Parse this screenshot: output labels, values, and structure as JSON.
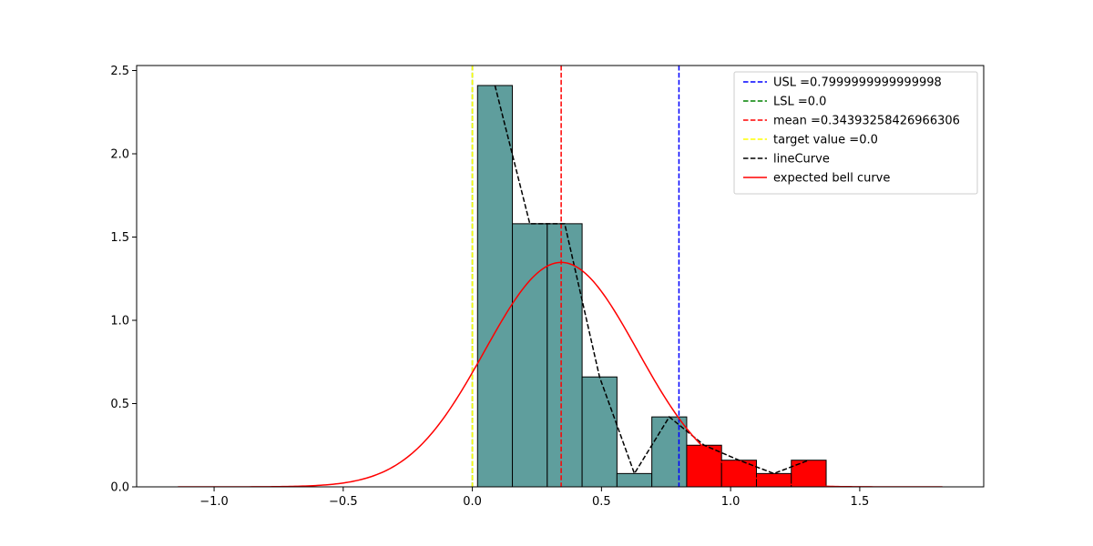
{
  "chart_data": {
    "type": "bar",
    "title": "",
    "xlabel": "",
    "ylabel": "",
    "xlim": [
      -1.3,
      1.98
    ],
    "ylim": [
      0,
      2.53
    ],
    "xticks": [
      -1.0,
      -0.5,
      0.0,
      0.5,
      1.0,
      1.5
    ],
    "xtick_labels": [
      "−1.0",
      "−0.5",
      "0.0",
      "0.5",
      "1.0",
      "1.5"
    ],
    "yticks": [
      0.0,
      0.5,
      1.0,
      1.5,
      2.0,
      2.5
    ],
    "ytick_labels": [
      "0.0",
      "0.5",
      "1.0",
      "1.5",
      "2.0",
      "2.5"
    ],
    "histogram": {
      "bin_edges": [
        0.02,
        0.155,
        0.29,
        0.425,
        0.56,
        0.695,
        0.83,
        0.965,
        1.1,
        1.235,
        1.37
      ],
      "values": [
        2.41,
        1.58,
        1.58,
        0.66,
        0.08,
        0.42,
        0.25,
        0.16,
        0.08,
        0.16
      ],
      "colors": [
        "#5f9e9d",
        "#5f9e9d",
        "#5f9e9d",
        "#5f9e9d",
        "#5f9e9d",
        "#5f9e9d",
        "#ff0000",
        "#ff0000",
        "#ff0000",
        "#ff0000"
      ]
    },
    "lines": [
      {
        "key": "usl",
        "name": "USL =0.7999999999999998",
        "color": "#0000ff",
        "style": "dashed",
        "x": 0.8
      },
      {
        "key": "lsl",
        "name": "LSL =0.0",
        "color": "#008000",
        "style": "dashed",
        "x": 0.0
      },
      {
        "key": "mean",
        "name": "mean =0.34393258426966306",
        "color": "#ff0000",
        "style": "dashed",
        "x": 0.34393258426966306
      },
      {
        "key": "target",
        "name": "target value =0.0",
        "color": "#ffff00",
        "style": "dashed",
        "x": 0.0
      }
    ],
    "series": [
      {
        "name": "lineCurve",
        "color": "#000000",
        "style": "dashed",
        "x": [
          0.0875,
          0.2225,
          0.3575,
          0.4925,
          0.6275,
          0.7625,
          0.8975,
          1.0325,
          1.1675,
          1.3025
        ],
        "values": [
          2.41,
          1.58,
          1.58,
          0.66,
          0.08,
          0.42,
          0.25,
          0.16,
          0.08,
          0.16
        ]
      },
      {
        "name": "expected bell curve",
        "color": "#ff0000",
        "style": "solid",
        "distribution": {
          "mean": 0.34393258426966306,
          "sd": 0.296,
          "x_range": [
            -1.14,
            1.82
          ]
        }
      }
    ],
    "legend": {
      "position": "upper right",
      "entries": [
        {
          "label": "USL =0.7999999999999998",
          "color": "#0000ff",
          "style": "dashed"
        },
        {
          "label": "LSL =0.0",
          "color": "#008000",
          "style": "dashed"
        },
        {
          "label": "mean =0.34393258426966306",
          "color": "#ff0000",
          "style": "dashed"
        },
        {
          "label": "target value =0.0",
          "color": "#ffff00",
          "style": "dashed"
        },
        {
          "label": "lineCurve",
          "color": "#000000",
          "style": "dashed"
        },
        {
          "label": "expected bell curve",
          "color": "#ff0000",
          "style": "solid"
        }
      ]
    }
  }
}
